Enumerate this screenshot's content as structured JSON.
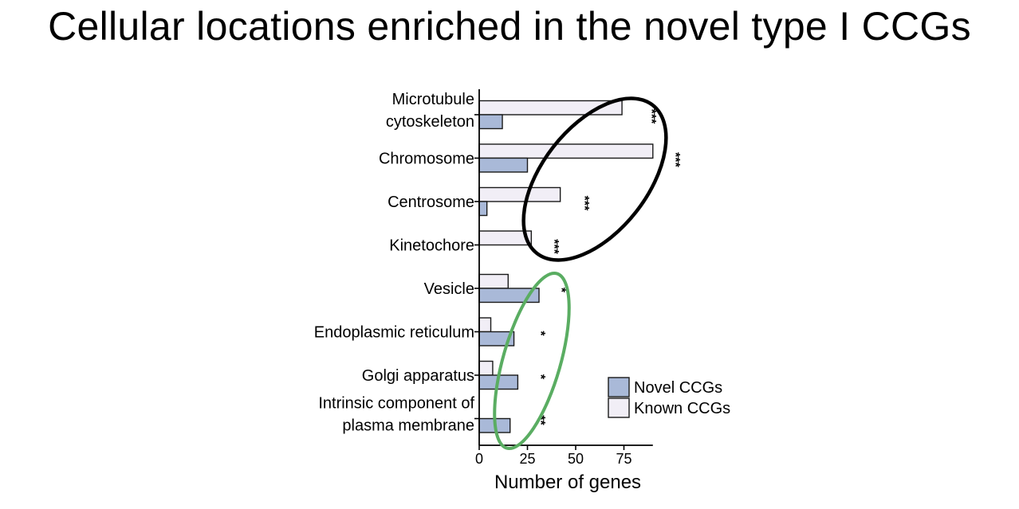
{
  "slide": {
    "title": "Cellular locations enriched in the novel type I CCGs"
  },
  "chart_data": {
    "type": "bar",
    "orientation": "horizontal",
    "categories": [
      [
        "Microtubule",
        "cytoskeleton"
      ],
      [
        "Chromosome"
      ],
      [
        "Centrosome"
      ],
      [
        "Kinetochore"
      ],
      [
        "Vesicle"
      ],
      [
        "Endoplasmic reticulum"
      ],
      [
        "Golgi apparatus"
      ],
      [
        "Intrinsic component of",
        "plasma membrane"
      ]
    ],
    "series": [
      {
        "name": "Known CCGs",
        "color": "#f1eef6",
        "values": [
          74,
          90,
          42,
          27,
          15,
          6,
          7,
          0
        ]
      },
      {
        "name": "Novel CCGs",
        "color": "#a9b9d8",
        "values": [
          12,
          25,
          4,
          0,
          31,
          18,
          20,
          16
        ]
      }
    ],
    "significance": [
      "***",
      "***",
      "***",
      "***",
      "*",
      "*",
      "*",
      "**"
    ],
    "xlabel": "Number of genes",
    "xticks": [
      0,
      25,
      50,
      75
    ],
    "xlim": [
      0,
      90
    ],
    "legend": {
      "placement": "bottom-right",
      "order": [
        "Novel CCGs",
        "Known CCGs"
      ]
    },
    "annotations": [
      {
        "shape": "ellipse",
        "color": "#000000",
        "encloses": [
          "Microtubule cytoskeleton",
          "Chromosome",
          "Centrosome",
          "Kinetochore"
        ]
      },
      {
        "shape": "ellipse",
        "color": "#5aad62",
        "encloses": [
          "Vesicle",
          "Endoplasmic reticulum",
          "Golgi apparatus",
          "Intrinsic component of plasma membrane"
        ]
      }
    ]
  }
}
